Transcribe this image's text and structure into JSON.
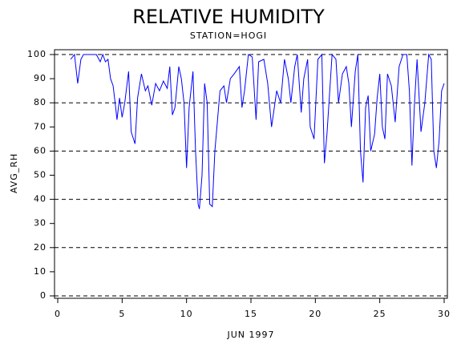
{
  "chart_data": {
    "type": "line",
    "title": "RELATIVE HUMIDITY",
    "subtitle": "STATION=HOGI",
    "x_label": "JUN 1997",
    "y_label": "AVG_RH",
    "xlim": [
      -0.25,
      30.25
    ],
    "ylim": [
      -1,
      102
    ],
    "xticks": [
      0,
      5,
      10,
      15,
      20,
      25,
      30
    ],
    "yticks": [
      0,
      10,
      20,
      30,
      40,
      50,
      60,
      70,
      80,
      90,
      100
    ],
    "grid": true,
    "series": [
      {
        "color": "#0000ff",
        "x": [
          1.0,
          1.3,
          1.55,
          1.8,
          2.0,
          2.5,
          3.0,
          3.3,
          3.5,
          3.7,
          3.9,
          4.1,
          4.3,
          4.5,
          4.6,
          4.8,
          5.0,
          5.2,
          5.5,
          5.7,
          6.0,
          6.2,
          6.5,
          6.8,
          7.0,
          7.3,
          7.6,
          7.9,
          8.2,
          8.5,
          8.7,
          8.9,
          9.1,
          9.4,
          9.6,
          9.8,
          10.0,
          10.2,
          10.5,
          10.7,
          10.9,
          11.0,
          11.2,
          11.4,
          11.6,
          11.8,
          12.0,
          12.2,
          12.6,
          12.9,
          13.1,
          13.4,
          13.7,
          14.1,
          14.3,
          14.5,
          14.8,
          15.1,
          15.4,
          15.6,
          16.0,
          16.3,
          16.6,
          17.0,
          17.3,
          17.6,
          17.9,
          18.1,
          18.4,
          18.6,
          18.9,
          19.1,
          19.4,
          19.6,
          19.9,
          20.2,
          20.5,
          20.7,
          20.9,
          21.3,
          21.6,
          21.8,
          22.1,
          22.4,
          22.6,
          22.8,
          23.1,
          23.3,
          23.5,
          23.7,
          23.9,
          24.1,
          24.3,
          24.6,
          24.8,
          25.0,
          25.2,
          25.4,
          25.6,
          25.9,
          26.2,
          26.5,
          26.8,
          27.1,
          27.3,
          27.5,
          27.7,
          27.9,
          28.2,
          28.5,
          28.8,
          29.0,
          29.2,
          29.4,
          29.6,
          29.8,
          30.0
        ],
        "values": [
          98,
          100,
          88,
          98,
          100,
          100,
          100,
          97,
          100,
          97,
          98,
          90,
          87,
          78,
          73,
          82,
          74,
          80,
          93,
          68,
          63,
          82,
          92,
          85,
          87,
          79,
          88,
          85,
          89,
          86,
          95,
          75,
          78,
          95,
          90,
          80,
          53,
          78,
          93,
          60,
          38,
          36,
          50,
          88,
          80,
          38,
          37,
          60,
          85,
          87,
          80,
          90,
          92,
          95,
          78,
          85,
          100,
          99,
          73,
          97,
          98,
          88,
          70,
          85,
          80,
          98,
          90,
          80,
          95,
          100,
          76,
          90,
          98,
          70,
          65,
          98,
          100,
          55,
          67,
          100,
          98,
          80,
          92,
          95,
          88,
          70,
          93,
          100,
          60,
          47,
          78,
          83,
          60,
          67,
          82,
          92,
          70,
          65,
          92,
          87,
          72,
          95,
          100,
          100,
          85,
          54,
          80,
          98,
          68,
          80,
          100,
          98,
          60,
          53,
          64,
          85,
          88
        ]
      }
    ]
  }
}
